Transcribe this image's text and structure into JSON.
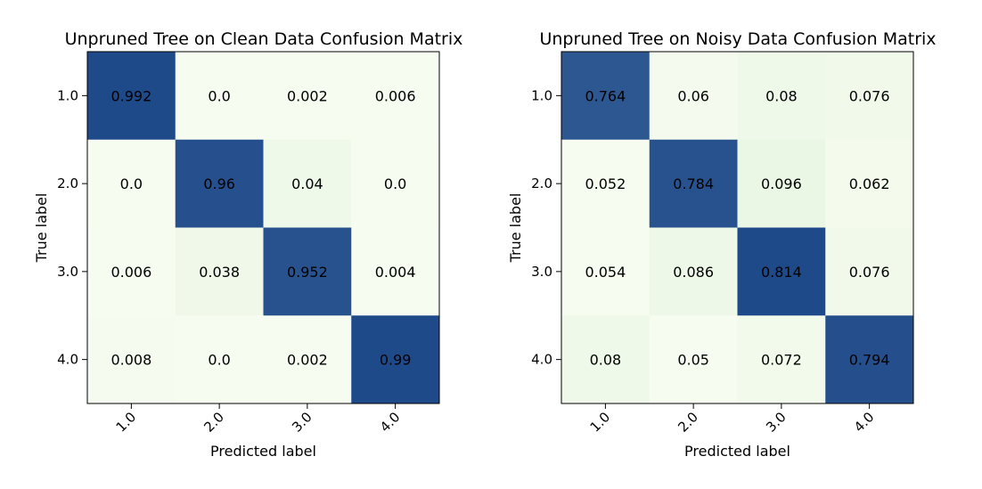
{
  "chart_data": [
    {
      "type": "heatmap",
      "title": "Unpruned Tree on Clean Data Confusion Matrix",
      "xlabel": "Predicted label",
      "ylabel": "True label",
      "x_categories": [
        "1.0",
        "2.0",
        "3.0",
        "4.0"
      ],
      "y_categories": [
        "1.0",
        "2.0",
        "3.0",
        "4.0"
      ],
      "values": [
        [
          0.992,
          0.0,
          0.002,
          0.006
        ],
        [
          0.0,
          0.96,
          0.04,
          0.0
        ],
        [
          0.006,
          0.038,
          0.952,
          0.004
        ],
        [
          0.008,
          0.0,
          0.002,
          0.99
        ]
      ],
      "cell_labels": [
        [
          "0.992",
          "0.0",
          "0.002",
          "0.006"
        ],
        [
          "0.0",
          "0.96",
          "0.04",
          "0.0"
        ],
        [
          "0.006",
          "0.038",
          "0.952",
          "0.004"
        ],
        [
          "0.008",
          "0.0",
          "0.002",
          "0.99"
        ]
      ],
      "colormap": "GnBu",
      "grid": false
    },
    {
      "type": "heatmap",
      "title": "Unpruned Tree on Noisy Data Confusion Matrix",
      "xlabel": "Predicted label",
      "ylabel": "True label",
      "x_categories": [
        "1.0",
        "2.0",
        "3.0",
        "4.0"
      ],
      "y_categories": [
        "1.0",
        "2.0",
        "3.0",
        "4.0"
      ],
      "values": [
        [
          0.764,
          0.06,
          0.08,
          0.076
        ],
        [
          0.052,
          0.784,
          0.096,
          0.062
        ],
        [
          0.054,
          0.086,
          0.814,
          0.076
        ],
        [
          0.08,
          0.05,
          0.072,
          0.794
        ]
      ],
      "cell_labels": [
        [
          "0.764",
          "0.06",
          "0.08",
          "0.076"
        ],
        [
          "0.052",
          "0.784",
          "0.096",
          "0.062"
        ],
        [
          "0.054",
          "0.086",
          "0.814",
          "0.076"
        ],
        [
          "0.08",
          "0.05",
          "0.072",
          "0.794"
        ]
      ],
      "colormap": "GnBu",
      "grid": false
    }
  ],
  "colors": {
    "low": "#f7fcf0",
    "mid": "#e0f3db",
    "high": "#1f4a8a"
  }
}
